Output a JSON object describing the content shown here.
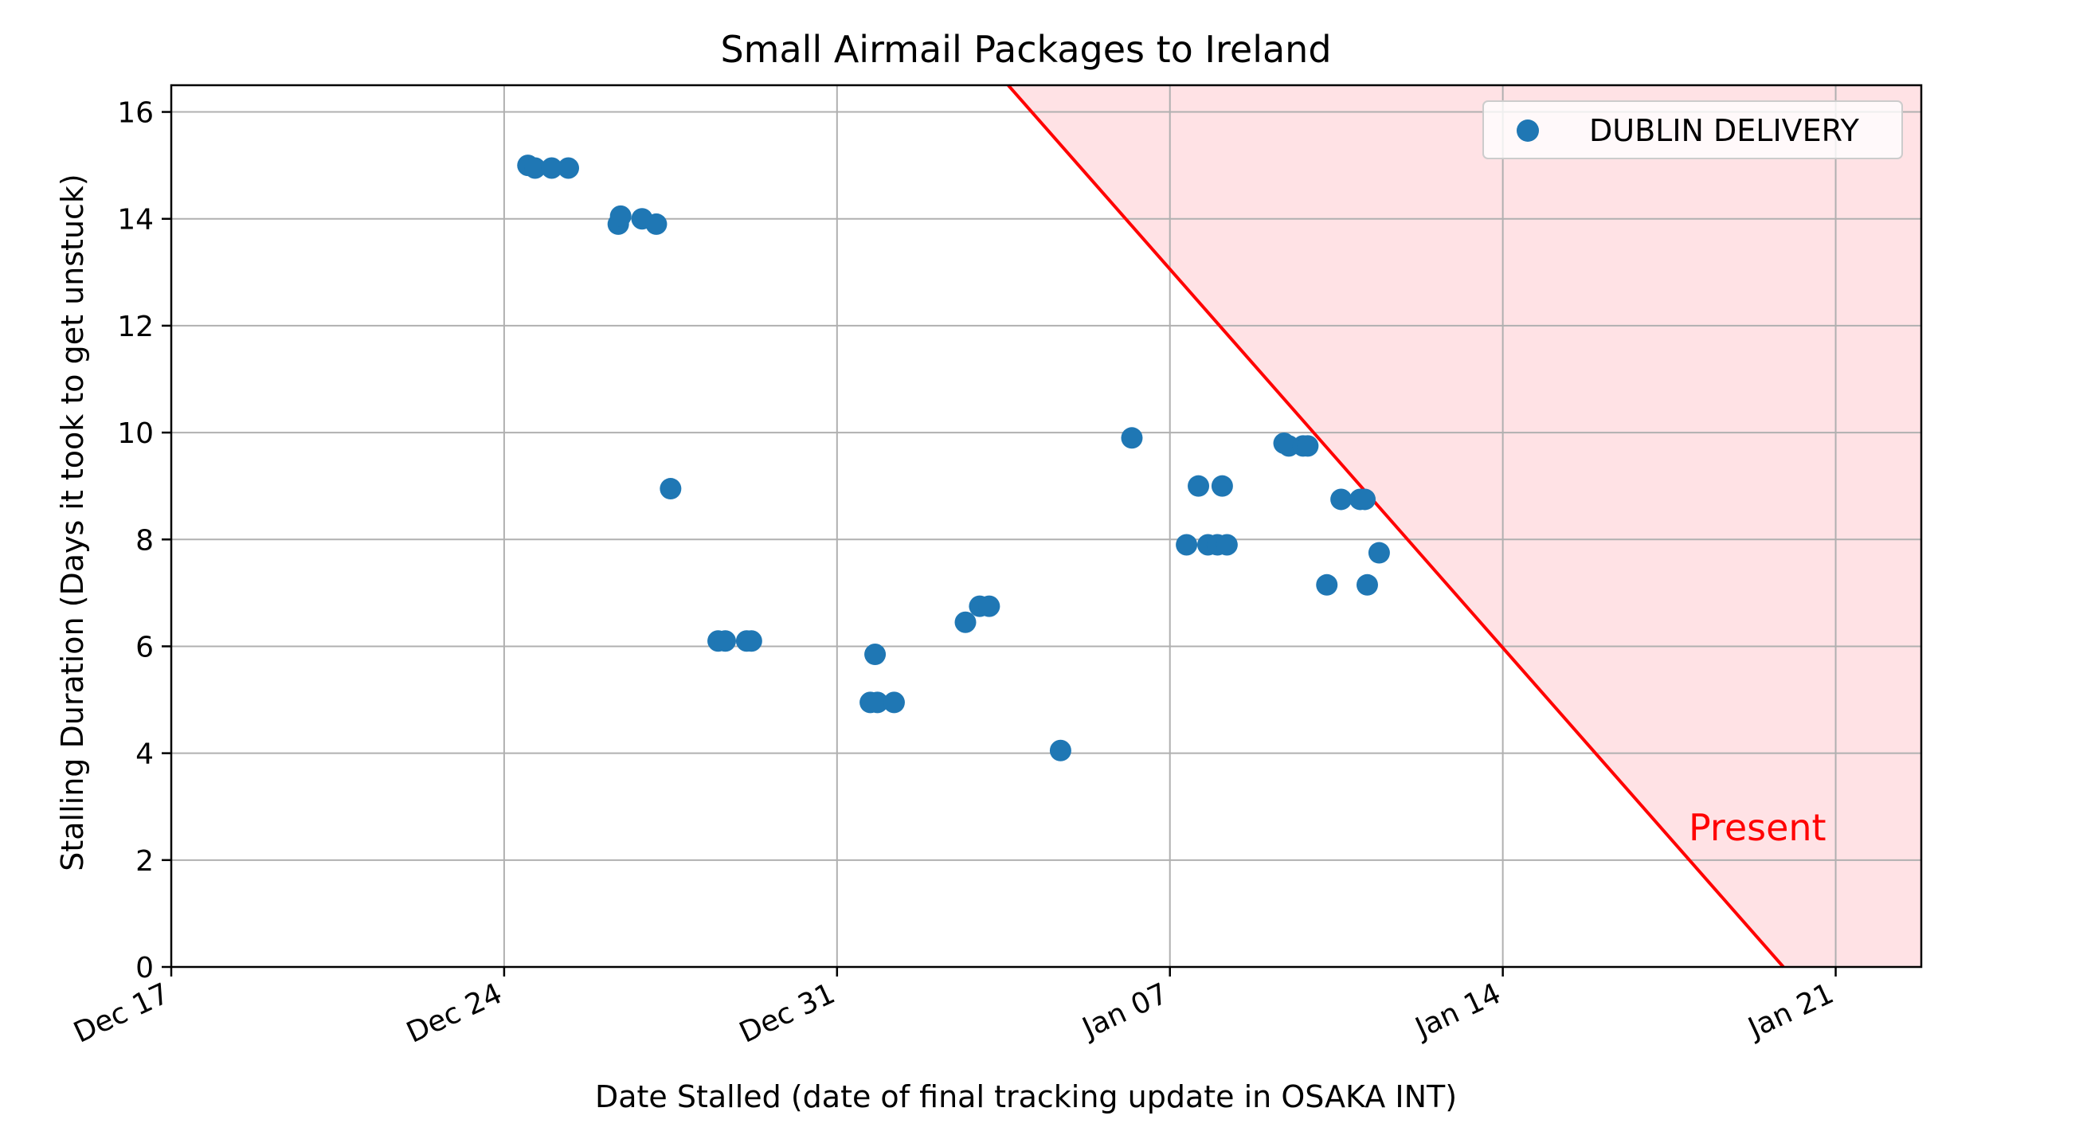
{
  "chart_data": {
    "type": "scatter",
    "title": "Small Airmail Packages to Ireland",
    "xlabel": "Date Stalled (date of final tracking update in OSAKA INT)",
    "ylabel": "Stalling Duration (Days it took to get unstuck)",
    "x_axis": "date",
    "xlim": [
      "Dec 17",
      "Jan 22.8"
    ],
    "ylim": [
      0,
      16.5
    ],
    "x_ticks": [
      "Dec 17",
      "Dec 24",
      "Dec 31",
      "Jan 07",
      "Jan 14",
      "Jan 21"
    ],
    "y_ticks": [
      0,
      2,
      4,
      6,
      8,
      10,
      12,
      14,
      16
    ],
    "grid": true,
    "legend_position": "top-right",
    "series": [
      {
        "name": "DUBLIN DELIVERY",
        "color": "#1f77b4",
        "points": [
          {
            "x": "Dec 24.5",
            "y": 15.0
          },
          {
            "x": "Dec 24.65",
            "y": 14.95
          },
          {
            "x": "Dec 25.0",
            "y": 14.95
          },
          {
            "x": "Dec 25.35",
            "y": 14.95
          },
          {
            "x": "Dec 26.4",
            "y": 13.9
          },
          {
            "x": "Dec 26.45",
            "y": 14.05
          },
          {
            "x": "Dec 26.9",
            "y": 14.0
          },
          {
            "x": "Dec 27.2",
            "y": 13.9
          },
          {
            "x": "Dec 27.5",
            "y": 8.95
          },
          {
            "x": "Dec 28.5",
            "y": 6.1
          },
          {
            "x": "Dec 28.65",
            "y": 6.1
          },
          {
            "x": "Dec 29.1",
            "y": 6.1
          },
          {
            "x": "Dec 29.2",
            "y": 6.1
          },
          {
            "x": "Dec 31.7",
            "y": 4.95
          },
          {
            "x": "Dec 31.8",
            "y": 5.85
          },
          {
            "x": "Dec 31.85",
            "y": 4.95
          },
          {
            "x": "Dec 32.2",
            "y": 4.95
          },
          {
            "x": "Dec 33.7",
            "y": 6.45
          },
          {
            "x": "Dec 34.0",
            "y": 6.75
          },
          {
            "x": "Dec 34.2",
            "y": 6.75
          },
          {
            "x": "Dec 35.7",
            "y": 4.05
          },
          {
            "x": "Dec 37.2",
            "y": 9.9
          },
          {
            "x": "Dec 38.35",
            "y": 7.9
          },
          {
            "x": "Dec 38.6",
            "y": 9.0
          },
          {
            "x": "Dec 38.8",
            "y": 7.9
          },
          {
            "x": "Dec 39.0",
            "y": 7.9
          },
          {
            "x": "Dec 39.1",
            "y": 9.0
          },
          {
            "x": "Dec 39.2",
            "y": 7.9
          },
          {
            "x": "Dec 40.4",
            "y": 9.8
          },
          {
            "x": "Dec 40.5",
            "y": 9.75
          },
          {
            "x": "Dec 40.8",
            "y": 9.75
          },
          {
            "x": "Dec 40.9",
            "y": 9.75
          },
          {
            "x": "Dec 41.3",
            "y": 7.15
          },
          {
            "x": "Dec 41.6",
            "y": 8.75
          },
          {
            "x": "Dec 42.0",
            "y": 8.75
          },
          {
            "x": "Dec 42.1",
            "y": 8.75
          },
          {
            "x": "Dec 42.15",
            "y": 7.15
          },
          {
            "x": "Dec 42.4",
            "y": 7.75
          }
        ]
      }
    ],
    "present_line": {
      "label": "Present",
      "color": "#ff0000",
      "shade_color": "#ffe2e5",
      "points": [
        {
          "x": "Dec 34.6",
          "y": 16.5
        },
        {
          "x": "Dec 50.9",
          "y": 0
        }
      ]
    }
  }
}
